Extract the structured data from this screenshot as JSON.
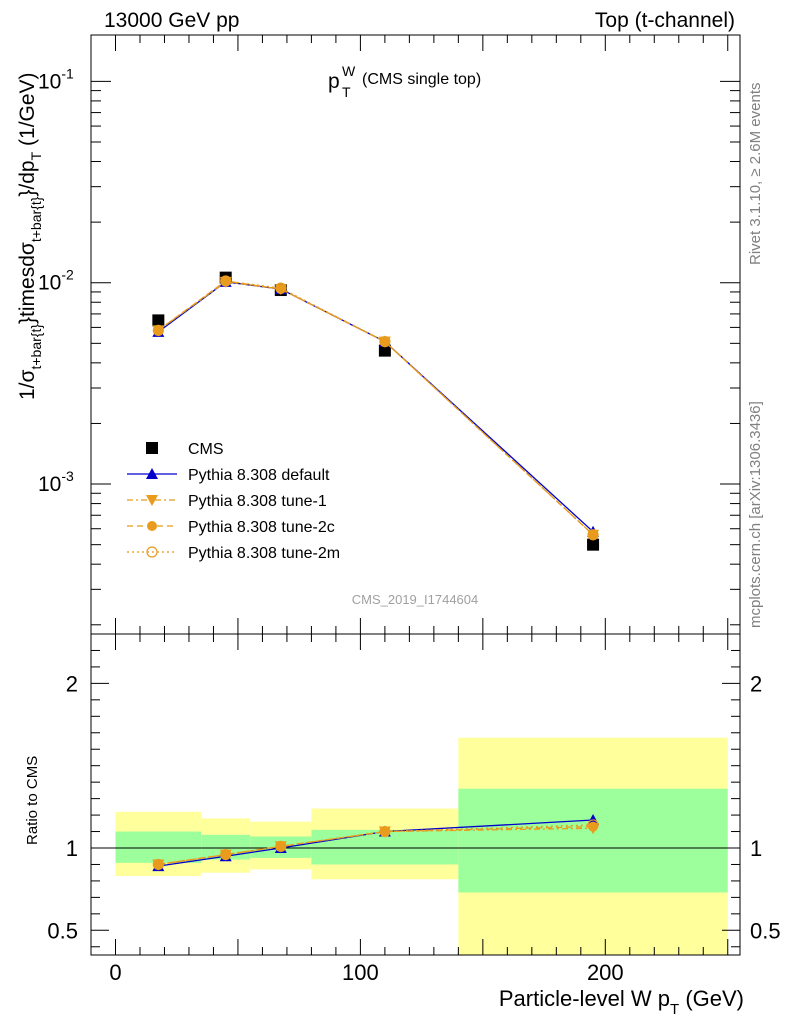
{
  "header": {
    "left": "13000 GeV pp",
    "right": "Top (t-channel)"
  },
  "plot_title": {
    "main": "p",
    "sub": "T",
    "sup": "W",
    "suffix": "(CMS single top)"
  },
  "analysis_id": "CMS_2019_I1744604",
  "side_text": {
    "upper": "Rivet 3.1.10, ≥ 2.6M events",
    "lower": "mcplots.cern.ch [arXiv:1306.3436]"
  },
  "colors": {
    "data": "#000000",
    "default": "#0000cc",
    "tune": "#e89b1c",
    "band_inner": "#9cff9c",
    "band_outer": "#ffff9c"
  },
  "chart_data": [
    {
      "type": "scatter",
      "panel": "main",
      "ylabel": "1/σ_{t+bar{t}}timesdσ_{t+bar{t}}/dp_T (1/GeV)",
      "yscale": "log",
      "ylim": [
        0.00018,
        0.17
      ],
      "xlim": [
        -10,
        255
      ],
      "y_tick_labels": [
        "10^{-3}",
        "10^{-2}",
        "10^{-1}"
      ],
      "x": [
        17.5,
        45,
        67.5,
        110,
        195
      ],
      "series": [
        {
          "name": "CMS",
          "marker": "square",
          "values": [
            0.0065,
            0.0106,
            0.0092,
            0.0046,
            0.0005
          ]
        },
        {
          "name": "Pythia 8.308 default",
          "marker": "triangle-up",
          "line": "solid",
          "values": [
            0.0057,
            0.0101,
            0.0093,
            0.0051,
            0.00058
          ]
        },
        {
          "name": "Pythia 8.308 tune-1",
          "marker": "triangle-down",
          "line": "dashdot",
          "values": [
            0.0058,
            0.0101,
            0.0093,
            0.0051,
            0.00056
          ]
        },
        {
          "name": "Pythia 8.308 tune-2c",
          "marker": "circle",
          "line": "dashed",
          "values": [
            0.0058,
            0.0102,
            0.0093,
            0.0051,
            0.00056
          ]
        },
        {
          "name": "Pythia 8.308 tune-2m",
          "marker": "open-circle",
          "line": "dotted",
          "values": [
            0.0058,
            0.0102,
            0.0094,
            0.0051,
            0.00056
          ]
        }
      ],
      "legend": "lower-left"
    },
    {
      "type": "line",
      "panel": "ratio",
      "ylabel": "Ratio to CMS",
      "xlabel": "Particle-level W p_T (GeV)",
      "ylim": [
        0.35,
        2.3
      ],
      "xlim": [
        -10,
        255
      ],
      "x_ticks": [
        0,
        100,
        200
      ],
      "x_tick_labels": [
        "0",
        "100",
        "200"
      ],
      "y_ticks": [
        0.5,
        1,
        2
      ],
      "y_tick_labels": [
        "0.5",
        "1",
        "2"
      ],
      "bands": [
        {
          "xlo": 0,
          "xhi": 35,
          "inner": [
            0.91,
            1.1
          ],
          "outer": [
            0.83,
            1.22
          ]
        },
        {
          "xlo": 35,
          "xhi": 55,
          "inner": [
            0.93,
            1.08
          ],
          "outer": [
            0.85,
            1.18
          ]
        },
        {
          "xlo": 55,
          "xhi": 80,
          "inner": [
            0.94,
            1.07
          ],
          "outer": [
            0.87,
            1.16
          ]
        },
        {
          "xlo": 80,
          "xhi": 140,
          "inner": [
            0.9,
            1.11
          ],
          "outer": [
            0.81,
            1.24
          ]
        },
        {
          "xlo": 140,
          "xhi": 250,
          "inner": [
            0.73,
            1.36
          ],
          "outer": [
            0.35,
            1.67
          ]
        }
      ],
      "x": [
        17.5,
        45,
        67.5,
        110,
        195
      ],
      "series": [
        {
          "name": "Pythia 8.308 default",
          "values": [
            0.89,
            0.95,
            1.0,
            1.1,
            1.17
          ]
        },
        {
          "name": "Pythia 8.308 tune-1",
          "values": [
            0.9,
            0.96,
            1.01,
            1.1,
            1.12
          ]
        },
        {
          "name": "Pythia 8.308 tune-2c",
          "values": [
            0.9,
            0.96,
            1.01,
            1.1,
            1.13
          ]
        },
        {
          "name": "Pythia 8.308 tune-2m",
          "values": [
            0.9,
            0.96,
            1.01,
            1.1,
            1.14
          ]
        }
      ]
    }
  ]
}
